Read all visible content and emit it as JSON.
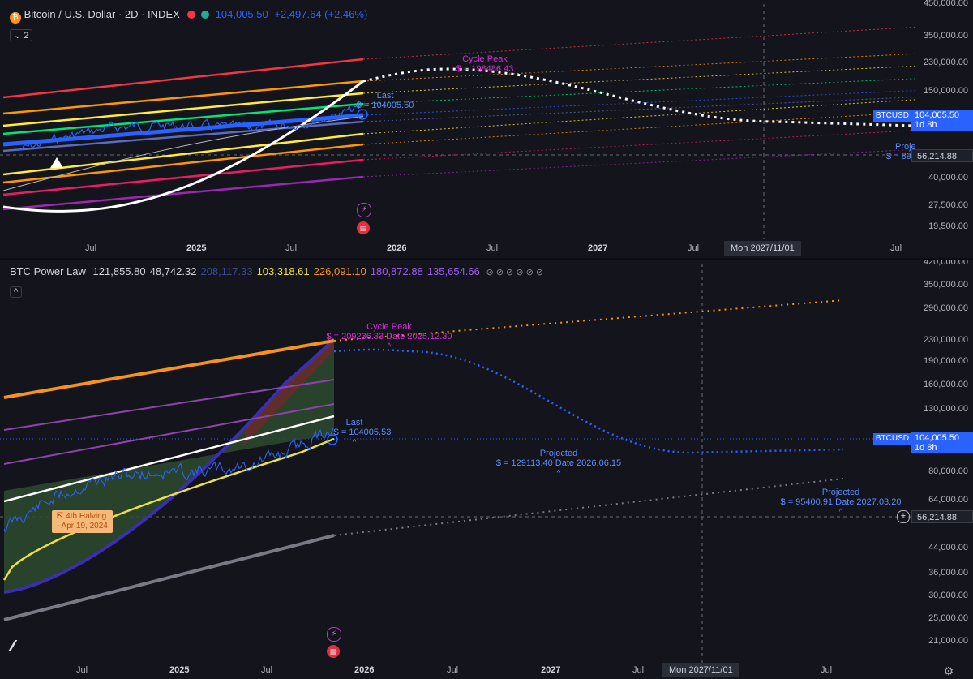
{
  "top": {
    "title": "Bitcoin / U.S. Dollar · 2D · INDEX",
    "price": "104,005.50",
    "change": "+2,497.64 (+2.46%)",
    "collapse_label": "2",
    "y_labels": [
      "350,000.00",
      "230,000.00",
      "150,000.00",
      "40,000.00",
      "27,500.00",
      "19,500.00"
    ],
    "y_label_cut": "450,000.00",
    "price_tag": {
      "symbol": "BTCUSD",
      "value": "104,005.50",
      "countdown": "1d 8h"
    },
    "level_tag": "56,214.88",
    "x_labels": [
      {
        "text": "Jul",
        "year": false
      },
      {
        "text": "2025",
        "year": true
      },
      {
        "text": "Jul",
        "year": false
      },
      {
        "text": "2026",
        "year": true
      },
      {
        "text": "Jul",
        "year": false
      },
      {
        "text": "2027",
        "year": true
      },
      {
        "text": "Jul",
        "year": false
      },
      {
        "text": "8",
        "year": false
      },
      {
        "text": "Jul",
        "year": false
      }
    ],
    "crosshair_date": "Mon 2027/11/01",
    "annotations": {
      "cycle_peak_title": "Cycle Peak",
      "cycle_peak_value": "$ = 198486.43",
      "last_title": "Last",
      "last_value": "$ = 104005.50",
      "proj_title": "Proje",
      "proj_value": "$ = 89"
    },
    "colors": {
      "accent": "#2962ff",
      "price": "#2962ff",
      "change": "#2962ff"
    }
  },
  "bottom": {
    "title": "BTC Power Law",
    "values": [
      {
        "text": "121,855.80",
        "color": "#d1d4dc"
      },
      {
        "text": "48,742.32",
        "color": "#d1d4dc"
      },
      {
        "text": "208,117.33",
        "color": "#3a4a9a"
      },
      {
        "text": "103,318.61",
        "color": "#e9e04a"
      },
      {
        "text": "226,091.10",
        "color": "#f7931a"
      },
      {
        "text": "180,872.88",
        "color": "#9b59f0"
      },
      {
        "text": "135,654.66",
        "color": "#9b59f0"
      }
    ],
    "extra_glyphs": "⊘ ⊘ ⊘ ⊘ ⊘ ⊘",
    "y_labels": [
      "350,000.00",
      "290,000.00",
      "230,000.00",
      "190,000.00",
      "160,000.00",
      "130,000.00",
      "80,000.00",
      "64,000.00",
      "44,000.00",
      "36,000.00",
      "30,000.00",
      "25,000.00",
      "21,000.00"
    ],
    "y_label_cut": "420,000.00",
    "price_tag": {
      "symbol": "BTCUSD",
      "value": "104,005.50",
      "countdown": "1d 8h"
    },
    "level_tag": "56,214.88",
    "x_labels": [
      {
        "text": "Jul",
        "year": false
      },
      {
        "text": "2025",
        "year": true
      },
      {
        "text": "Jul",
        "year": false
      },
      {
        "text": "2026",
        "year": true
      },
      {
        "text": "Jul",
        "year": false
      },
      {
        "text": "2027",
        "year": true
      },
      {
        "text": "Jul",
        "year": false
      },
      {
        "text": "8",
        "year": false
      },
      {
        "text": "Jul",
        "year": false
      }
    ],
    "crosshair_date": "Mon 2027/11/01",
    "annotations": {
      "cycle_peak_title": "Cycle Peak",
      "cycle_peak_value": "$ = 209236.33  Date 2025.12.30",
      "last_title": "Last",
      "last_value": "$ = 104005.53",
      "proj1_title": "Projected",
      "proj1_value": "$ = 129113.40  Date 2026.06.15",
      "proj2_title": "Projected",
      "proj2_value": "$ = 95400.91  Date 2027.03.20",
      "halving_line1": "4th Halving",
      "halving_line2": "- Apr 19, 2024",
      "caret": "^"
    }
  },
  "chart_data": [
    {
      "type": "line",
      "title": "Bitcoin / U.S. Dollar · 2D · INDEX",
      "scale": "log",
      "ylim": [
        15000,
        450000
      ],
      "x_range": [
        "2024-03-01",
        "2028-09-01"
      ],
      "series": [
        {
          "name": "BTCUSD",
          "x": [
            "2024-03",
            "2024-06",
            "2024-09",
            "2024-12",
            "2025-03",
            "2025-06",
            "2025-09",
            "2025-11"
          ],
          "values": [
            68000,
            64000,
            60000,
            96000,
            85000,
            105000,
            112000,
            104005.5
          ]
        }
      ],
      "projection": {
        "x": [
          "2025-12-30",
          "2026-06",
          "2027-01",
          "2027-11",
          "2028-09"
        ],
        "values": [
          198486.43,
          165000,
          120000,
          95000,
          90000
        ]
      },
      "markers": {
        "last": 104005.5,
        "cycle_peak": 198486.43,
        "level": 56214.88
      }
    },
    {
      "type": "line",
      "title": "BTC Power Law",
      "scale": "log",
      "ylim": [
        18000,
        420000
      ],
      "x_range": [
        "2024-03-01",
        "2028-09-01"
      ],
      "series": [
        {
          "name": "BTCUSD",
          "x": [
            "2024-03",
            "2024-06",
            "2024-09",
            "2024-12",
            "2025-03",
            "2025-06",
            "2025-09",
            "2025-11"
          ],
          "values": [
            68000,
            64000,
            60000,
            96000,
            85000,
            105000,
            112000,
            104005.53
          ]
        },
        {
          "name": "Cycle top band",
          "values": [
            226091.1
          ]
        },
        {
          "name": "Fair value",
          "values": [
            121855.8
          ]
        },
        {
          "name": "Floor",
          "values": [
            48742.32
          ]
        }
      ],
      "projections": [
        {
          "value": 209236.33,
          "date": "2025.12.30"
        },
        {
          "value": 129113.4,
          "date": "2026.06.15"
        },
        {
          "value": 95400.91,
          "date": "2027.03.20"
        }
      ],
      "markers": {
        "last": 104005.53,
        "level": 56214.88,
        "halving": "Apr 19, 2024"
      }
    }
  ]
}
